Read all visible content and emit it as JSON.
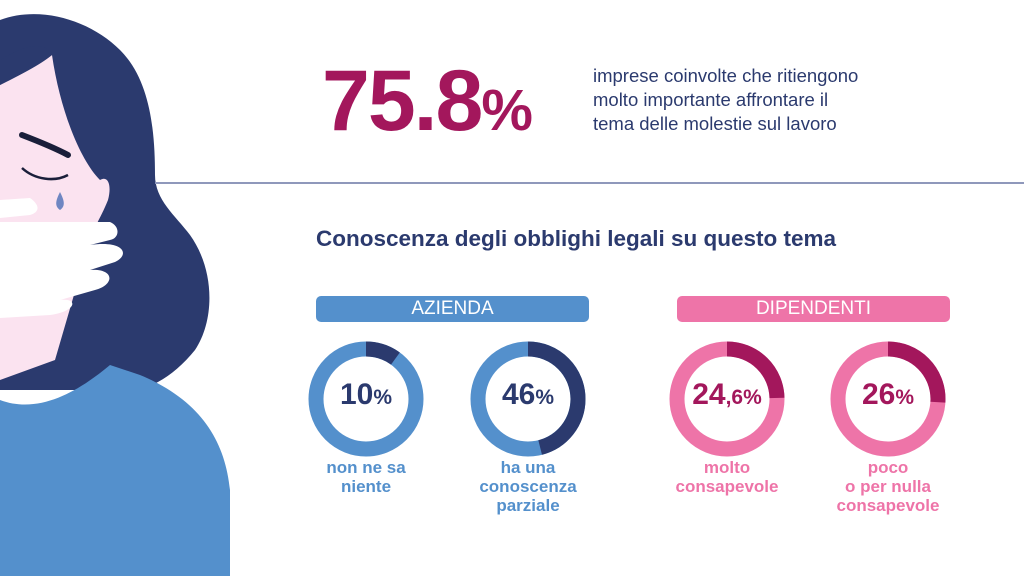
{
  "headline": {
    "value": "75.8",
    "unit": "%",
    "description_lines": [
      "imprese coinvolte che ritiengono",
      "molto importante affrontare il",
      "tema delle molestie sul lavoro"
    ]
  },
  "section_title": "Conoscenza degli obblighi legali su questo tema",
  "colors": {
    "azienda_light": "#5490cc",
    "azienda_dark": "#2b3a6e",
    "dip_light": "#ee74a8",
    "dip_dark": "#a3175c",
    "headline": "#a3175c"
  },
  "chart_data": [
    {
      "type": "pie",
      "group": "AZIENDA",
      "value": 10,
      "value_label": "10",
      "unit": "%",
      "label_lines": [
        "non ne sa",
        "niente"
      ]
    },
    {
      "type": "pie",
      "group": "AZIENDA",
      "value": 46,
      "value_label": "46",
      "unit": "%",
      "label_lines": [
        "ha una",
        "conoscenza",
        "parziale"
      ]
    },
    {
      "type": "pie",
      "group": "DIPENDENTI",
      "value": 24.6,
      "value_label": "24",
      "value_decimal": ",6",
      "unit": "%",
      "label_lines": [
        "molto",
        "consapevole"
      ]
    },
    {
      "type": "pie",
      "group": "DIPENDENTI",
      "value": 26,
      "value_label": "26",
      "unit": "%",
      "label_lines": [
        "poco",
        "o per nulla",
        "consapevole"
      ]
    }
  ],
  "groups": {
    "azienda": "AZIENDA",
    "dipendenti": "DIPENDENTI"
  }
}
